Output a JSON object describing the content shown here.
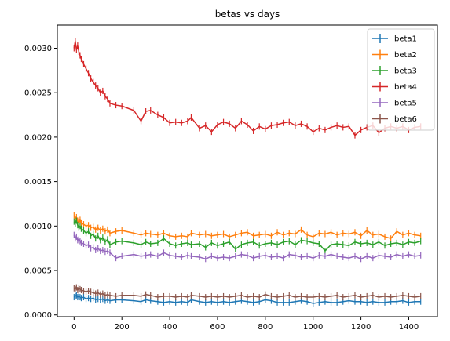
{
  "chart_data": {
    "type": "line",
    "title": "betas vs days",
    "xlabel": "",
    "ylabel": "",
    "xlim": [
      -70,
      1520
    ],
    "ylim": [
      -2e-05,
      0.00326
    ],
    "x_ticks": [
      0,
      200,
      400,
      600,
      800,
      1000,
      1200,
      1400
    ],
    "x_tick_labels": [
      "0",
      "200",
      "400",
      "600",
      "800",
      "1000",
      "1200",
      "1400"
    ],
    "y_ticks": [
      0.0,
      0.0005,
      0.001,
      0.0015,
      0.002,
      0.0025,
      0.003
    ],
    "y_tick_labels": [
      "0.0000",
      "0.0005",
      "0.0010",
      "0.0015",
      "0.0020",
      "0.0025",
      "0.0030"
    ],
    "grid": false,
    "legend_position": "top-right",
    "error_bars": true,
    "x": [
      0,
      5,
      10,
      15,
      20,
      25,
      30,
      40,
      50,
      60,
      70,
      80,
      90,
      100,
      110,
      120,
      130,
      140,
      150,
      175,
      200,
      250,
      280,
      300,
      320,
      350,
      375,
      400,
      425,
      450,
      475,
      490,
      525,
      550,
      575,
      600,
      625,
      650,
      675,
      700,
      725,
      750,
      775,
      800,
      825,
      850,
      875,
      900,
      925,
      950,
      975,
      1000,
      1025,
      1050,
      1075,
      1100,
      1125,
      1150,
      1175,
      1200,
      1225,
      1250,
      1275,
      1300,
      1325,
      1350,
      1375,
      1400,
      1425,
      1450
    ],
    "series": [
      {
        "name": "beta1",
        "color": "#1f77b4",
        "values": [
          0.0002,
          0.00021,
          0.00022,
          0.0002,
          0.00021,
          0.0002,
          0.00019,
          0.0002,
          0.00018,
          0.00019,
          0.00018,
          0.00019,
          0.00017,
          0.00018,
          0.00017,
          0.00018,
          0.00016,
          0.00017,
          0.00016,
          0.00017,
          0.00017,
          0.00016,
          0.00015,
          0.00017,
          0.00016,
          0.00015,
          0.00014,
          0.00015,
          0.00014,
          0.00015,
          0.00014,
          0.00017,
          0.00015,
          0.00014,
          0.00015,
          0.00014,
          0.00015,
          0.00014,
          0.00015,
          0.00016,
          0.00015,
          0.00014,
          0.00015,
          0.00017,
          0.00016,
          0.00014,
          0.00014,
          0.00014,
          0.00015,
          0.00016,
          0.00015,
          0.00013,
          0.00014,
          0.00015,
          0.00014,
          0.00014,
          0.00015,
          0.00016,
          0.00015,
          0.00015,
          0.00014,
          0.00015,
          0.00014,
          0.00014,
          0.00015,
          0.00015,
          0.00016,
          0.00014,
          0.00015,
          0.00015
        ]
      },
      {
        "name": "beta2",
        "color": "#ff7f0e",
        "values": [
          0.00112,
          0.00108,
          0.0011,
          0.00106,
          0.00104,
          0.00107,
          0.00103,
          0.00102,
          0.001,
          0.00101,
          0.00098,
          0.00099,
          0.00096,
          0.00098,
          0.00095,
          0.00097,
          0.00094,
          0.00096,
          0.00092,
          0.00094,
          0.00095,
          0.00092,
          0.0009,
          0.00092,
          0.00091,
          0.0009,
          0.00092,
          0.00089,
          0.00088,
          0.00089,
          0.00088,
          0.00092,
          0.0009,
          0.00091,
          0.00089,
          0.0009,
          0.00091,
          0.00088,
          0.0009,
          0.00092,
          0.00093,
          0.00089,
          0.0009,
          0.00091,
          0.00089,
          0.00093,
          0.0009,
          0.00092,
          0.00091,
          0.00096,
          0.0009,
          0.00088,
          0.00092,
          0.00091,
          0.00093,
          0.0009,
          0.00092,
          0.00091,
          0.00093,
          0.00089,
          0.00095,
          0.0009,
          0.00091,
          0.00088,
          0.00086,
          0.00094,
          0.0009,
          0.00092,
          0.0009,
          0.00089
        ]
      },
      {
        "name": "beta3",
        "color": "#2ca02c",
        "values": [
          0.00105,
          0.00103,
          0.00106,
          0.00101,
          0.00098,
          0.001,
          0.00097,
          0.00095,
          0.00092,
          0.00094,
          0.00089,
          0.00091,
          0.00086,
          0.00089,
          0.00084,
          0.00087,
          0.00082,
          0.00085,
          0.00079,
          0.00082,
          0.00083,
          0.00081,
          0.00079,
          0.00082,
          0.0008,
          0.00081,
          0.00086,
          0.0008,
          0.00078,
          0.0008,
          0.00081,
          0.00079,
          0.0008,
          0.00076,
          0.00081,
          0.00078,
          0.0008,
          0.00082,
          0.00074,
          0.00079,
          0.00081,
          0.00082,
          0.00078,
          0.0008,
          0.00081,
          0.00079,
          0.00082,
          0.00083,
          0.00079,
          0.00084,
          0.00083,
          0.00081,
          0.0008,
          0.00072,
          0.00079,
          0.0008,
          0.00079,
          0.00078,
          0.00082,
          0.0008,
          0.00081,
          0.00079,
          0.00082,
          0.00078,
          0.0008,
          0.00081,
          0.00079,
          0.00082,
          0.00081,
          0.00083
        ]
      },
      {
        "name": "beta4",
        "color": "#d62728",
        "values": [
          0.003,
          0.00308,
          0.00298,
          0.00303,
          0.00296,
          0.00292,
          0.00288,
          0.00282,
          0.00277,
          0.00272,
          0.00266,
          0.00262,
          0.00258,
          0.00255,
          0.0025,
          0.00252,
          0.00246,
          0.00243,
          0.00238,
          0.00236,
          0.00235,
          0.0023,
          0.00218,
          0.00229,
          0.0023,
          0.00225,
          0.00222,
          0.00216,
          0.00217,
          0.00216,
          0.00218,
          0.00222,
          0.0021,
          0.00213,
          0.00206,
          0.00214,
          0.00217,
          0.00215,
          0.0021,
          0.00218,
          0.00214,
          0.00207,
          0.00212,
          0.00209,
          0.00213,
          0.00214,
          0.00216,
          0.00217,
          0.00213,
          0.00215,
          0.00212,
          0.00206,
          0.0021,
          0.00208,
          0.00211,
          0.00213,
          0.00211,
          0.00212,
          0.00202,
          0.00208,
          0.00211,
          0.00213,
          0.00205,
          0.0021,
          0.00212,
          0.0021,
          0.00212,
          0.00208,
          0.00211,
          0.00212
        ]
      },
      {
        "name": "beta5",
        "color": "#9467bd",
        "values": [
          0.0009,
          0.00086,
          0.00088,
          0.00084,
          0.00085,
          0.00083,
          0.00081,
          0.0008,
          0.00078,
          0.00079,
          0.00075,
          0.00076,
          0.00073,
          0.00075,
          0.00072,
          0.00073,
          0.00071,
          0.00072,
          0.0007,
          0.00064,
          0.00066,
          0.00068,
          0.00066,
          0.00067,
          0.00068,
          0.00066,
          0.0007,
          0.00067,
          0.00066,
          0.00065,
          0.00067,
          0.00066,
          0.00065,
          0.00063,
          0.00066,
          0.00064,
          0.00065,
          0.00064,
          0.00066,
          0.00068,
          0.00067,
          0.00064,
          0.00066,
          0.00067,
          0.00065,
          0.00066,
          0.00064,
          0.00068,
          0.00067,
          0.00065,
          0.00066,
          0.00064,
          0.00067,
          0.00066,
          0.00068,
          0.00066,
          0.00065,
          0.00064,
          0.00066,
          0.00063,
          0.00066,
          0.00064,
          0.00067,
          0.00066,
          0.00065,
          0.00068,
          0.00066,
          0.00068,
          0.00066,
          0.00067
        ]
      },
      {
        "name": "beta6",
        "color": "#8c564b",
        "values": [
          0.0003,
          0.00029,
          0.00031,
          0.00028,
          0.0003,
          0.00029,
          0.00028,
          0.00027,
          0.00026,
          0.00027,
          0.00026,
          0.00025,
          0.00024,
          0.00025,
          0.00023,
          0.00024,
          0.00022,
          0.00023,
          0.00022,
          0.00021,
          0.00022,
          0.00022,
          0.00021,
          0.00023,
          0.00022,
          0.0002,
          0.00021,
          0.00021,
          0.0002,
          0.00021,
          0.0002,
          0.00022,
          0.00021,
          0.0002,
          0.00021,
          0.0002,
          0.00021,
          0.0002,
          0.00021,
          0.00022,
          0.0002,
          0.00021,
          0.0002,
          0.00023,
          0.00021,
          0.0002,
          0.00021,
          0.00022,
          0.0002,
          0.00021,
          0.0002,
          0.0002,
          0.00021,
          0.0002,
          0.00021,
          0.00022,
          0.0002,
          0.00021,
          0.00022,
          0.0002,
          0.00021,
          0.00022,
          0.0002,
          0.00021,
          0.0002,
          0.00021,
          0.00022,
          0.00021,
          0.0002,
          0.00021
        ]
      }
    ]
  }
}
